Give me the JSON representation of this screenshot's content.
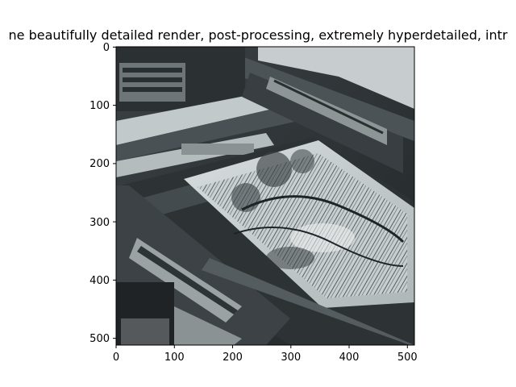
{
  "title": "ne beautifully detailed render, post-processing, extremely hyperdetailed, intr",
  "image_description_icon": "photo-of-printing-press-with-engraved-plate",
  "axes": {
    "x_ticks": [
      "0",
      "100",
      "200",
      "300",
      "400",
      "500"
    ],
    "y_ticks": [
      "0",
      "100",
      "200",
      "300",
      "400",
      "500"
    ],
    "x_range": [
      0,
      512
    ],
    "y_range": [
      0,
      512
    ]
  },
  "colors": {
    "metal_dark": "#2f3437",
    "metal_mid": "#5f6669",
    "metal_light": "#b8bfc1",
    "paper": "#d9dedd",
    "engraving_dark": "#3a4144"
  }
}
